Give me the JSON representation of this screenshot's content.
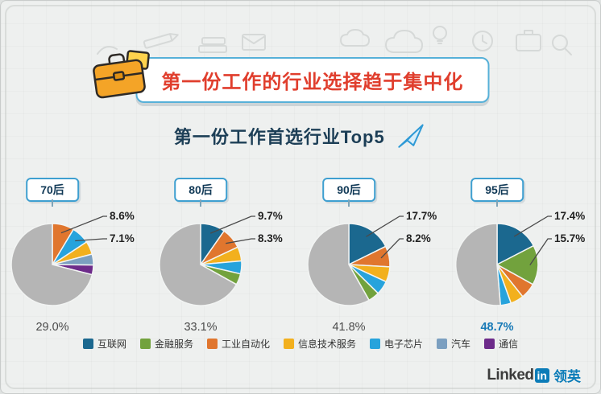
{
  "title": "第一份工作的行业选择趋于集中化",
  "subtitle": "第一份工作首选行业Top5",
  "legend": [
    {
      "label": "互联网",
      "color": "#1b688f"
    },
    {
      "label": "金融服务",
      "color": "#72a23d"
    },
    {
      "label": "工业自动化",
      "color": "#e0762e"
    },
    {
      "label": "信息技术服务",
      "color": "#f2b01e"
    },
    {
      "label": "电子芯片",
      "color": "#27a3dc"
    },
    {
      "label": "汽车",
      "color": "#7b9fc0"
    },
    {
      "label": "通信",
      "color": "#6d2b8a"
    }
  ],
  "chart_data": {
    "type": "pie",
    "title": "第一份工作首选行业Top5",
    "other_color": "#b5b5b5",
    "highlight_color": "#1779b6",
    "charts": [
      {
        "group": "70后",
        "callouts": [
          "8.6%",
          "7.1%"
        ],
        "total_label": "29.0%",
        "total_value": 29.0,
        "slices": [
          {
            "industry": "工业自动化",
            "value": 8.6
          },
          {
            "industry": "电子芯片",
            "value": 7.1
          },
          {
            "industry": "信息技术服务",
            "value": 5.2
          },
          {
            "industry": "汽车",
            "value": 4.3
          },
          {
            "industry": "通信",
            "value": 3.8
          }
        ]
      },
      {
        "group": "80后",
        "callouts": [
          "9.7%",
          "8.3%"
        ],
        "total_label": "33.1%",
        "total_value": 33.1,
        "slices": [
          {
            "industry": "互联网",
            "value": 9.7
          },
          {
            "industry": "工业自动化",
            "value": 8.3
          },
          {
            "industry": "信息技术服务",
            "value": 5.6
          },
          {
            "industry": "电子芯片",
            "value": 5.1
          },
          {
            "industry": "金融服务",
            "value": 4.4
          }
        ]
      },
      {
        "group": "90后",
        "callouts": [
          "17.7%",
          "8.2%"
        ],
        "total_label": "41.8%",
        "total_value": 41.8,
        "slices": [
          {
            "industry": "互联网",
            "value": 17.7
          },
          {
            "industry": "工业自动化",
            "value": 8.2
          },
          {
            "industry": "信息技术服务",
            "value": 6.0
          },
          {
            "industry": "电子芯片",
            "value": 5.5
          },
          {
            "industry": "金融服务",
            "value": 4.4
          }
        ]
      },
      {
        "group": "95后",
        "callouts": [
          "17.4%",
          "15.7%"
        ],
        "total_label": "48.7%",
        "total_value": 48.7,
        "highlight": true,
        "slices": [
          {
            "industry": "互联网",
            "value": 17.4
          },
          {
            "industry": "金融服务",
            "value": 15.7
          },
          {
            "industry": "工业自动化",
            "value": 6.2
          },
          {
            "industry": "信息技术服务",
            "value": 5.2
          },
          {
            "industry": "电子芯片",
            "value": 4.2
          }
        ]
      }
    ]
  },
  "logo": {
    "linked": "Linked",
    "in": "in",
    "cn": "领英"
  }
}
